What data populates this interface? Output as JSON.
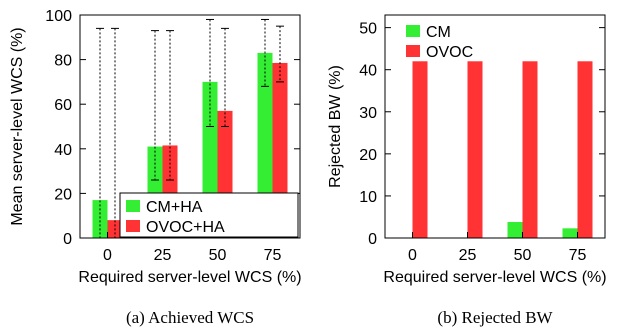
{
  "chart_data": [
    {
      "type": "bar",
      "caption": "(a) Achieved WCS",
      "xlabel": "Required server-level WCS (%)",
      "ylabel": "Mean server-level WCS (%)",
      "categories": [
        "0",
        "25",
        "50",
        "75"
      ],
      "ylim": [
        0,
        100
      ],
      "yticks": [
        0,
        20,
        40,
        60,
        80,
        100
      ],
      "legend_position": "bottom-right",
      "series": [
        {
          "name": "CM+HA",
          "color": "#33ee33",
          "values": [
            17,
            41,
            70,
            83
          ],
          "err_high": [
            94,
            93,
            98,
            98
          ],
          "err_low": [
            0,
            26,
            50,
            68
          ]
        },
        {
          "name": "OVOC+HA",
          "color": "#ff3333",
          "values": [
            8,
            41.5,
            57,
            78.5
          ],
          "err_high": [
            94,
            93,
            94,
            95
          ],
          "err_low": [
            0,
            26,
            50,
            70
          ]
        }
      ]
    },
    {
      "type": "bar",
      "caption": "(b) Rejected BW",
      "xlabel": "Required server-level WCS (%)",
      "ylabel": "Rejected BW (%)",
      "categories": [
        "0",
        "25",
        "50",
        "75"
      ],
      "ylim": [
        0,
        53
      ],
      "yticks": [
        0,
        10,
        20,
        30,
        40,
        50
      ],
      "legend_position": "top-left",
      "series": [
        {
          "name": "CM",
          "color": "#33ee33",
          "values": [
            0,
            0,
            3.8,
            2.3
          ]
        },
        {
          "name": "OVOC",
          "color": "#ff3333",
          "values": [
            42,
            42,
            42,
            42
          ]
        }
      ]
    }
  ]
}
